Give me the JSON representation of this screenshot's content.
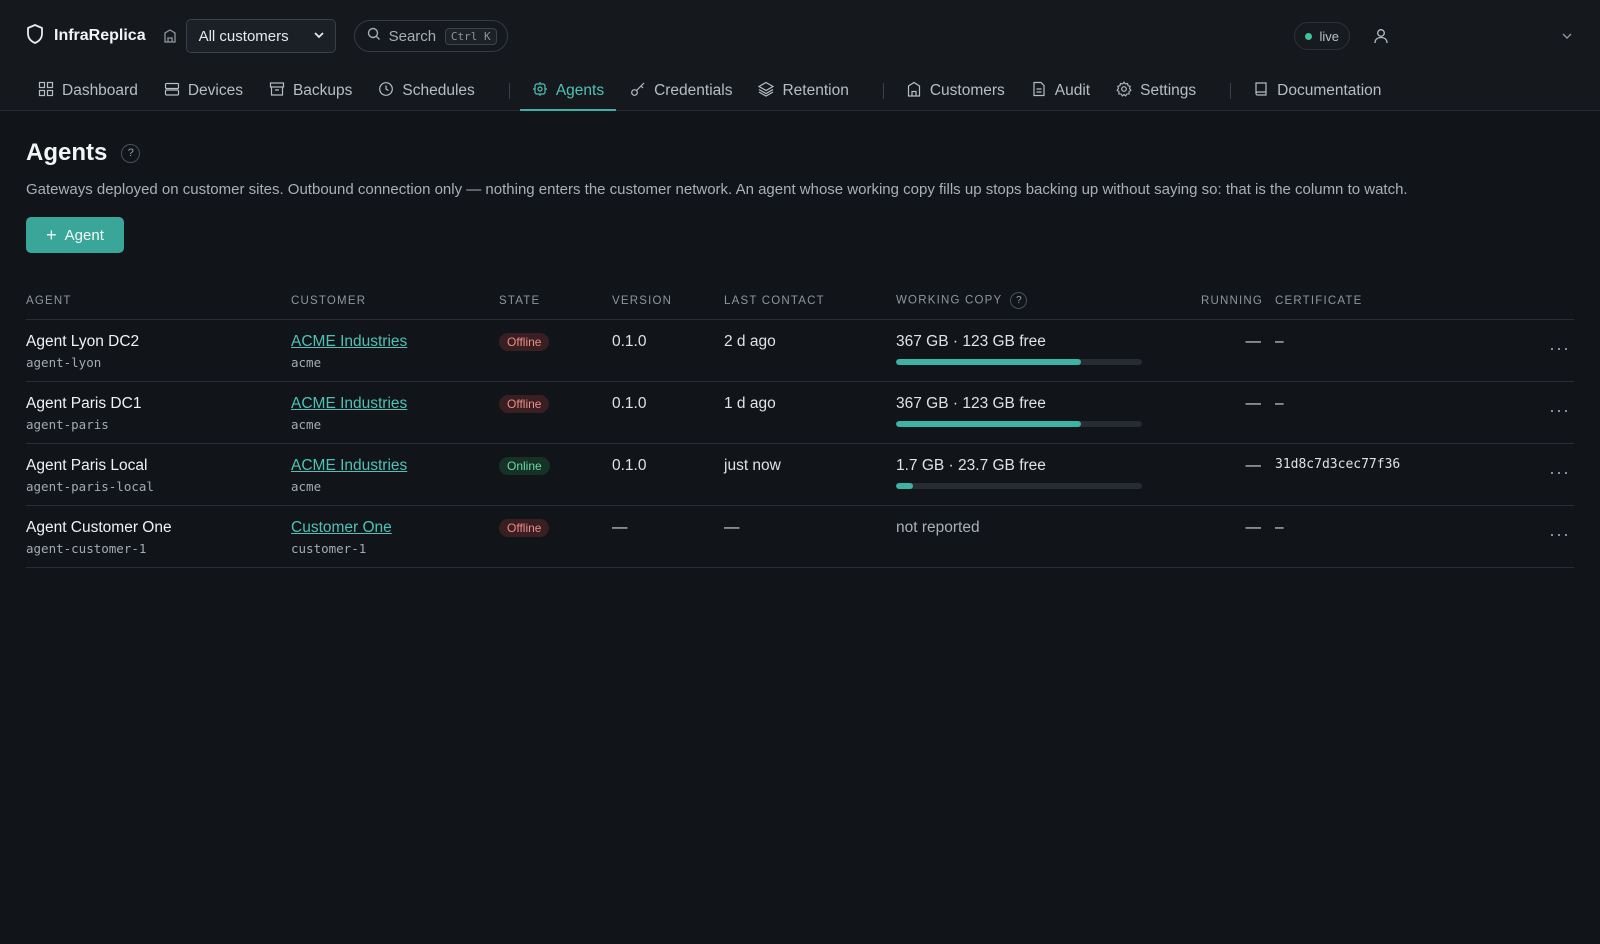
{
  "app": {
    "name": "InfraReplica"
  },
  "header": {
    "customer_select": "All customers",
    "search_label": "Search",
    "search_shortcut": "Ctrl K",
    "live_label": "live"
  },
  "nav": {
    "items": [
      {
        "label": "Dashboard",
        "icon": "dashboard-icon"
      },
      {
        "label": "Devices",
        "icon": "devices-icon"
      },
      {
        "label": "Backups",
        "icon": "backups-icon"
      },
      {
        "label": "Schedules",
        "icon": "clock-icon"
      },
      {
        "label": "Agents",
        "icon": "agent-icon",
        "active": true
      },
      {
        "label": "Credentials",
        "icon": "key-icon"
      },
      {
        "label": "Retention",
        "icon": "layers-icon"
      },
      {
        "label": "Customers",
        "icon": "building-icon"
      },
      {
        "label": "Audit",
        "icon": "document-icon"
      },
      {
        "label": "Settings",
        "icon": "gear-icon"
      },
      {
        "label": "Documentation",
        "icon": "book-icon"
      }
    ]
  },
  "page": {
    "title": "Agents",
    "help": "?",
    "subtitle": "Gateways deployed on customer sites. Outbound connection only — nothing enters the customer network. An agent whose working copy fills up stops backing up without saying so: that is the column to watch.",
    "add_button": "Agent",
    "add_plus": "+"
  },
  "table": {
    "columns": [
      "AGENT",
      "CUSTOMER",
      "STATE",
      "VERSION",
      "LAST CONTACT",
      "WORKING COPY",
      "RUNNING",
      "CERTIFICATE"
    ],
    "working_copy_help": "?",
    "more": "···",
    "rows": [
      {
        "name": "Agent Lyon DC2",
        "slug": "agent-lyon",
        "customer": "ACME Industries",
        "customer_slug": "acme",
        "state": "Offline",
        "version": "0.1.0",
        "last_contact": "2 d ago",
        "working_copy": "367 GB · 123 GB free",
        "used_fraction": 0.75,
        "running": "—",
        "certificate": "–"
      },
      {
        "name": "Agent Paris DC1",
        "slug": "agent-paris",
        "customer": "ACME Industries",
        "customer_slug": "acme",
        "state": "Offline",
        "version": "0.1.0",
        "last_contact": "1 d ago",
        "working_copy": "367 GB · 123 GB free",
        "used_fraction": 0.75,
        "running": "—",
        "certificate": "–"
      },
      {
        "name": "Agent Paris Local",
        "slug": "agent-paris-local",
        "customer": "ACME Industries",
        "customer_slug": "acme",
        "state": "Online",
        "version": "0.1.0",
        "last_contact": "just now",
        "working_copy": "1.7 GB · 23.7 GB free",
        "used_fraction": 0.07,
        "running": "—",
        "certificate": "31d8c7d3cec77f36"
      },
      {
        "name": "Agent Customer One",
        "slug": "agent-customer-1",
        "customer": "Customer One",
        "customer_slug": "customer-1",
        "state": "Offline",
        "version": "—",
        "last_contact": "—",
        "working_copy": "not reported",
        "running": "—",
        "certificate": "–"
      }
    ]
  },
  "colors": {
    "accent": "#3eb3a5",
    "offline": "#ec8b85",
    "online": "#6cd6a4",
    "background": "#111418"
  }
}
